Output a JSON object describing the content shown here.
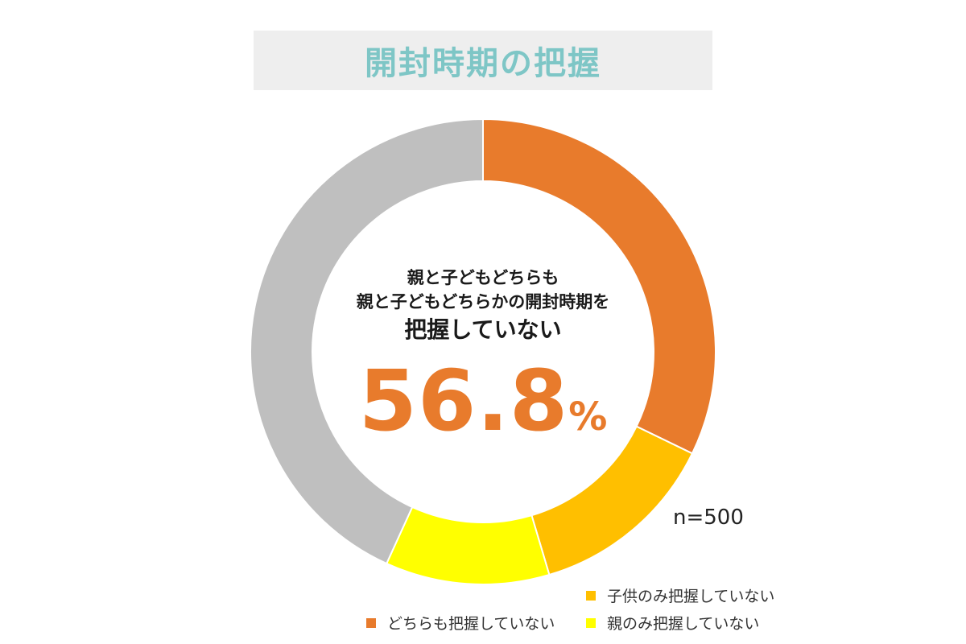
{
  "header": {
    "title": "開封時期の把握"
  },
  "center": {
    "line1": "親と子どもどちらも",
    "line2": "親と子どもどちらかの開封時期を",
    "line3": "把握していない",
    "value": "56.8",
    "unit": "%"
  },
  "sample_size": "n=500",
  "colors": {
    "title": "#7ec6c6",
    "title_bg": "#eeeeee",
    "highlight": "#e87b2c"
  },
  "chart_data": {
    "type": "pie",
    "donut": true,
    "title": "開封時期の把握",
    "start_angle_deg": 0,
    "direction": "clockwise",
    "series": [
      {
        "name": "どちらも把握していない",
        "value": 32.2,
        "color": "#e87b2c",
        "show_in_legend": true
      },
      {
        "name": "子供のみ把握していない",
        "value": 13.2,
        "color": "#ffbf00",
        "show_in_legend": true
      },
      {
        "name": "親のみ把握していない",
        "value": 11.4,
        "color": "#ffff00",
        "show_in_legend": true
      },
      {
        "name": "",
        "value": 43.2,
        "color": "#bfbfbf",
        "show_in_legend": false
      }
    ]
  }
}
